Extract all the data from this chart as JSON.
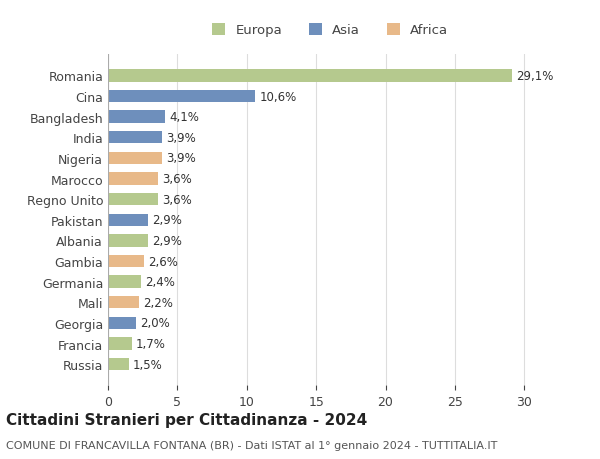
{
  "title": "Cittadini Stranieri per Cittadinanza - 2024",
  "subtitle": "COMUNE DI FRANCAVILLA FONTANA (BR) - Dati ISTAT al 1° gennaio 2024 - TUTTITALIA.IT",
  "categories": [
    "Russia",
    "Francia",
    "Georgia",
    "Mali",
    "Germania",
    "Gambia",
    "Albania",
    "Pakistan",
    "Regno Unito",
    "Marocco",
    "Nigeria",
    "India",
    "Bangladesh",
    "Cina",
    "Romania"
  ],
  "values": [
    1.5,
    1.7,
    2.0,
    2.2,
    2.4,
    2.6,
    2.9,
    2.9,
    3.6,
    3.6,
    3.9,
    3.9,
    4.1,
    10.6,
    29.1
  ],
  "labels": [
    "1,5%",
    "1,7%",
    "2,0%",
    "2,2%",
    "2,4%",
    "2,6%",
    "2,9%",
    "2,9%",
    "3,6%",
    "3,6%",
    "3,9%",
    "3,9%",
    "4,1%",
    "10,6%",
    "29,1%"
  ],
  "continents": [
    "Europa",
    "Europa",
    "Asia",
    "Africa",
    "Europa",
    "Africa",
    "Europa",
    "Asia",
    "Europa",
    "Africa",
    "Africa",
    "Asia",
    "Asia",
    "Asia",
    "Europa"
  ],
  "colors": {
    "Europa": "#b5c98e",
    "Asia": "#6e8fbc",
    "Africa": "#e8b989"
  },
  "xlim": [
    0,
    32
  ],
  "xticks": [
    0,
    5,
    10,
    15,
    20,
    25,
    30
  ],
  "background_color": "#ffffff",
  "grid_color": "#dddddd",
  "bar_height": 0.6,
  "label_fontsize": 8.5,
  "title_fontsize": 11,
  "subtitle_fontsize": 8,
  "tick_fontsize": 9,
  "legend_fontsize": 9.5
}
